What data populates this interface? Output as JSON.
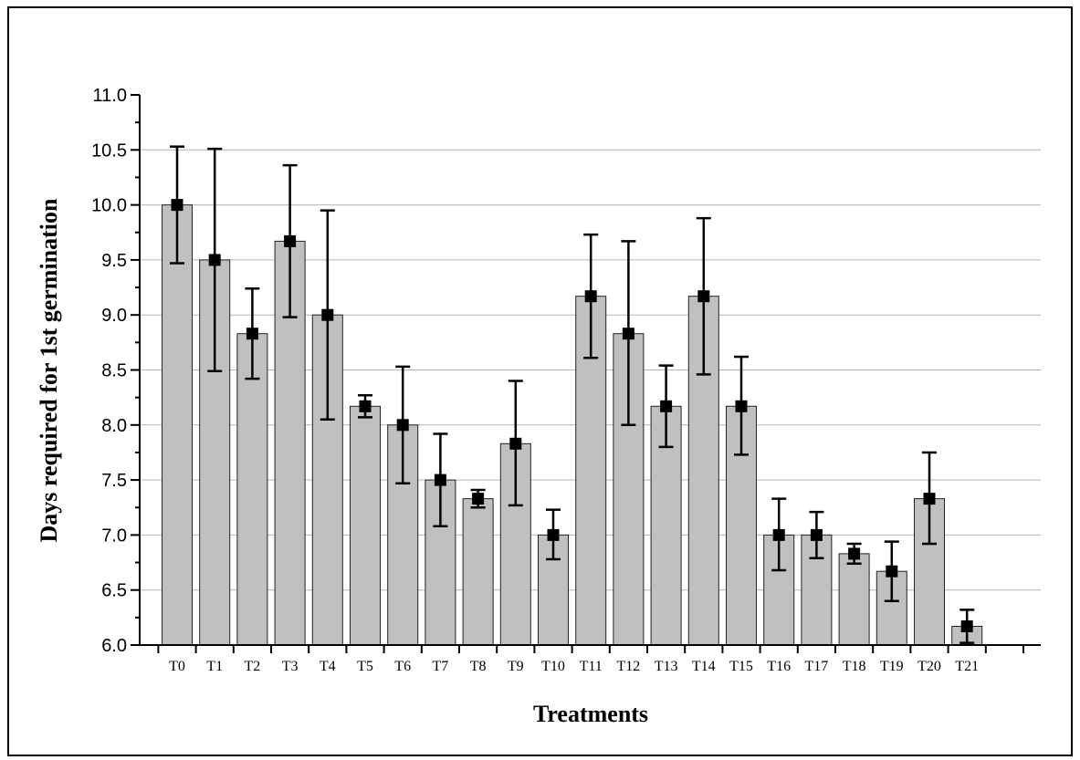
{
  "chart_data": {
    "type": "bar",
    "title": "",
    "xlabel": "Treatments",
    "ylabel": "Days required for 1st germination",
    "ylim": [
      6.0,
      11.0
    ],
    "yticks": [
      "6.0",
      "6.5",
      "7.0",
      "7.5",
      "8.0",
      "8.5",
      "9.0",
      "9.5",
      "10.0",
      "10.5",
      "11.0"
    ],
    "grid": true,
    "categories": [
      "T0",
      "T1",
      "T2",
      "T3",
      "T4",
      "T5",
      "T6",
      "T7",
      "T8",
      "T9",
      "T10",
      "T11",
      "T12",
      "T13",
      "T14",
      "T15",
      "T16",
      "T17",
      "T18",
      "T19",
      "T20",
      "T21"
    ],
    "values": [
      10.0,
      9.5,
      8.83,
      9.67,
      9.0,
      8.17,
      8.0,
      7.5,
      7.33,
      7.83,
      7.0,
      9.17,
      8.83,
      8.17,
      9.17,
      8.17,
      7.0,
      7.0,
      6.83,
      6.67,
      7.33,
      6.17
    ],
    "error_low": [
      9.47,
      8.49,
      8.42,
      8.98,
      8.05,
      8.07,
      7.47,
      7.08,
      7.25,
      7.27,
      6.78,
      8.61,
      8.0,
      7.8,
      8.46,
      7.73,
      6.68,
      6.79,
      6.74,
      6.4,
      6.92,
      6.02
    ],
    "error_high": [
      10.53,
      10.51,
      9.24,
      10.36,
      9.95,
      8.27,
      8.53,
      7.92,
      7.41,
      8.4,
      7.23,
      9.73,
      9.67,
      8.54,
      9.88,
      8.62,
      7.33,
      7.21,
      6.92,
      6.94,
      7.75,
      6.32
    ],
    "colors": {
      "bar": "#c0c0c0",
      "bar_edge": "#222222",
      "marker": "#000000",
      "grid": "#b4b4b4"
    }
  }
}
